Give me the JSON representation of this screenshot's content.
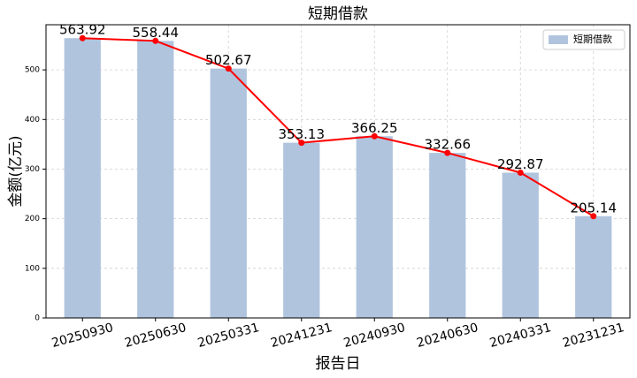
{
  "chart_data": {
    "type": "bar",
    "title": "短期借款",
    "x_label": "报告日",
    "y_label": "金额(亿元)",
    "categories": [
      "20250930",
      "20250630",
      "20250331",
      "20241231",
      "20240930",
      "20240630",
      "20240331",
      "20231231"
    ],
    "series": [
      {
        "name": "短期借款",
        "color": "#b0c4de",
        "values": [
          563.92,
          558.44,
          502.67,
          353.13,
          366.25,
          332.66,
          292.87,
          205.14
        ]
      }
    ],
    "line_color": "#ff0000",
    "ylim": [
      0,
      591
    ],
    "yticks": [
      0,
      100,
      200,
      300,
      400,
      500
    ],
    "grid": true,
    "legend": "upper right"
  }
}
